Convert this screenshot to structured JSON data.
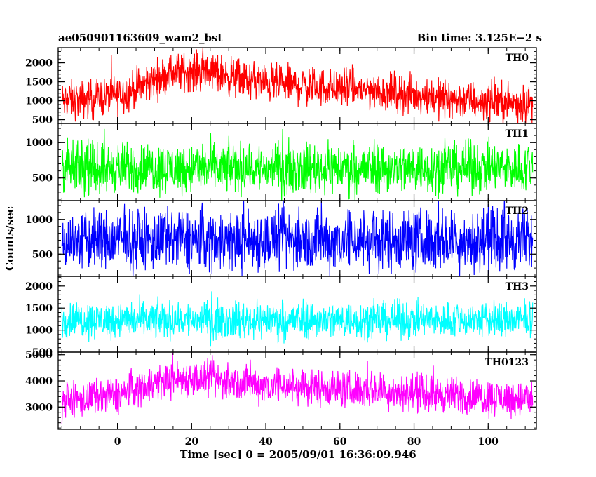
{
  "header": {
    "title": "ae050901163609_wam2_bst",
    "bin_time": "Bin time: 3.125E−2 s"
  },
  "axes": {
    "ylabel": "Counts/sec",
    "xlabel": "Time [sec] 0 = 2005/09/01 16:36:09.946"
  },
  "chart_data": {
    "type": "line",
    "title": "ae050901163609_wam2_bst",
    "xlabel": "Time [sec] 0 = 2005/09/01 16:36:09.946",
    "ylabel": "Counts/sec",
    "xlim": [
      -16,
      113
    ],
    "x_ticks": [
      0,
      20,
      40,
      60,
      80,
      100
    ],
    "panels": [
      {
        "name": "TH0",
        "color": "#ff0000",
        "ylim": [
          400,
          2400
        ],
        "y_ticks": [
          500,
          1000,
          1500,
          2000
        ],
        "x": [
          -15,
          -10,
          -5,
          0,
          5,
          10,
          15,
          20,
          25,
          30,
          35,
          40,
          45,
          50,
          55,
          60,
          65,
          70,
          75,
          80,
          85,
          90,
          95,
          100,
          105,
          112
        ],
        "mean": [
          1000,
          1020,
          1080,
          1150,
          1300,
          1550,
          1750,
          1780,
          1750,
          1650,
          1550,
          1480,
          1420,
          1400,
          1350,
          1340,
          1300,
          1250,
          1220,
          1150,
          1100,
          1050,
          1000,
          980,
          950,
          900
        ],
        "spread": 400
      },
      {
        "name": "TH1",
        "color": "#00ff00",
        "ylim": [
          180,
          1270
        ],
        "y_ticks": [
          500,
          1000
        ],
        "x": [
          -15,
          112
        ],
        "mean": [
          640,
          640
        ],
        "spread": 280
      },
      {
        "name": "TH2",
        "color": "#0000ff",
        "ylim": [
          180,
          1270
        ],
        "y_ticks": [
          500,
          1000
        ],
        "x": [
          -15,
          112
        ],
        "mean": [
          700,
          700
        ],
        "spread": 350
      },
      {
        "name": "TH3",
        "color": "#00ffff",
        "ylim": [
          500,
          2220
        ],
        "y_ticks": [
          500,
          1000,
          1500,
          2000
        ],
        "x": [
          -15,
          112
        ],
        "mean": [
          1230,
          1230
        ],
        "spread": 330
      },
      {
        "name": "TH0123",
        "color": "#ff00ff",
        "ylim": [
          2150,
          5100
        ],
        "y_ticks": [
          3000,
          4000,
          5000
        ],
        "x": [
          -15,
          -10,
          -5,
          0,
          5,
          10,
          15,
          20,
          25,
          30,
          35,
          40,
          45,
          50,
          55,
          60,
          65,
          70,
          75,
          80,
          85,
          90,
          95,
          100,
          105,
          112
        ],
        "mean": [
          3250,
          3280,
          3350,
          3450,
          3700,
          3950,
          4050,
          4100,
          4050,
          3950,
          3900,
          3850,
          3800,
          3780,
          3750,
          3700,
          3680,
          3650,
          3600,
          3550,
          3500,
          3450,
          3400,
          3380,
          3350,
          3300
        ],
        "spread": 550
      }
    ]
  }
}
